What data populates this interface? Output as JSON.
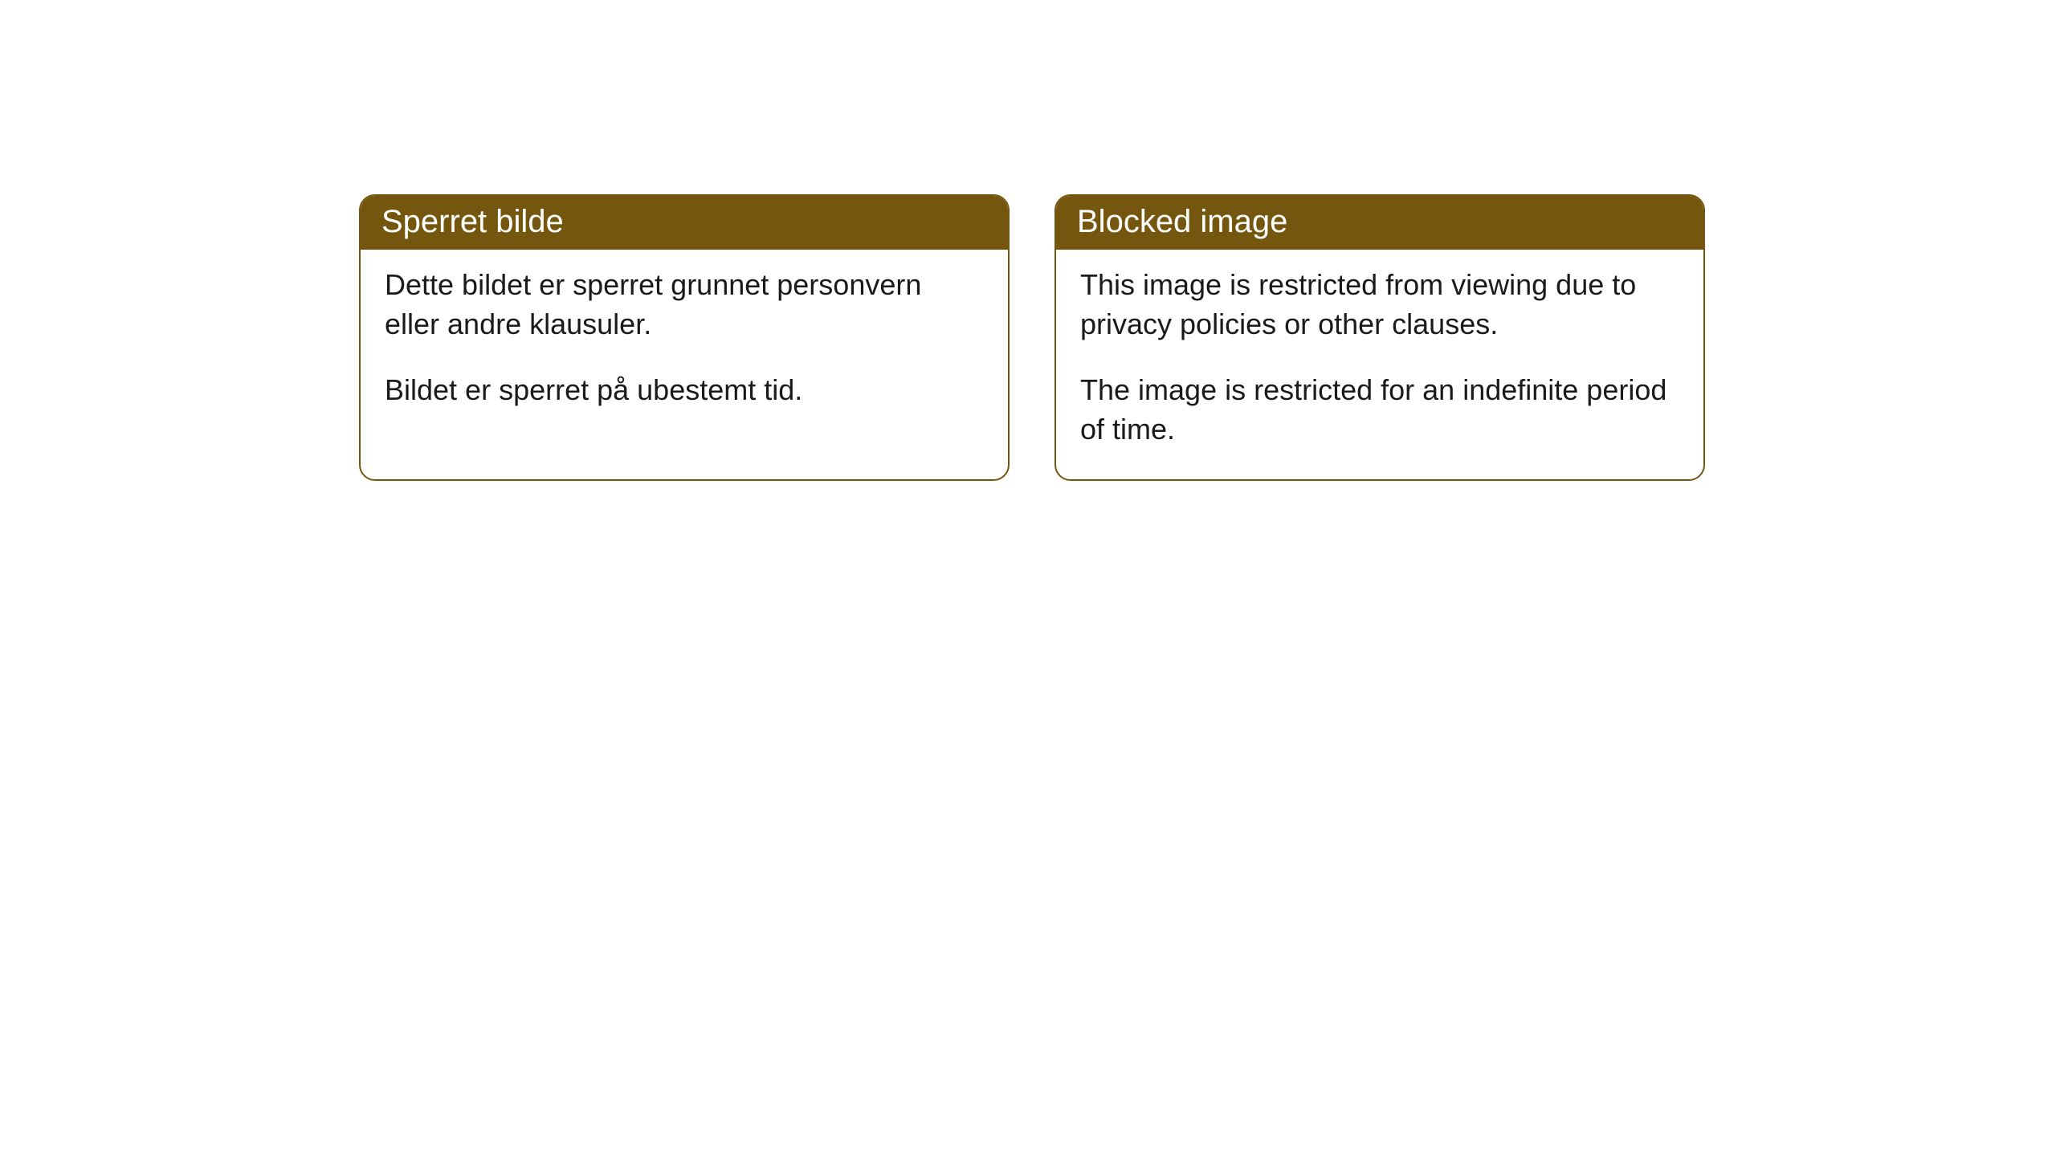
{
  "cards": [
    {
      "header": "Sperret bilde",
      "paragraph1": "Dette bildet er sperret grunnet personvern eller andre klausuler.",
      "paragraph2": "Bildet er sperret på ubestemt tid."
    },
    {
      "header": "Blocked image",
      "paragraph1": "This image is restricted from viewing due to privacy policies or other clauses.",
      "paragraph2": "The image is restricted for an indefinite period of time."
    }
  ],
  "styling": {
    "header_background_color": "#75560f",
    "header_text_color": "#ffffff",
    "card_border_color": "#75560f",
    "card_background_color": "#ffffff",
    "body_text_color": "#1a1a1a",
    "border_radius": 20,
    "header_font_size": 40,
    "body_font_size": 36
  }
}
